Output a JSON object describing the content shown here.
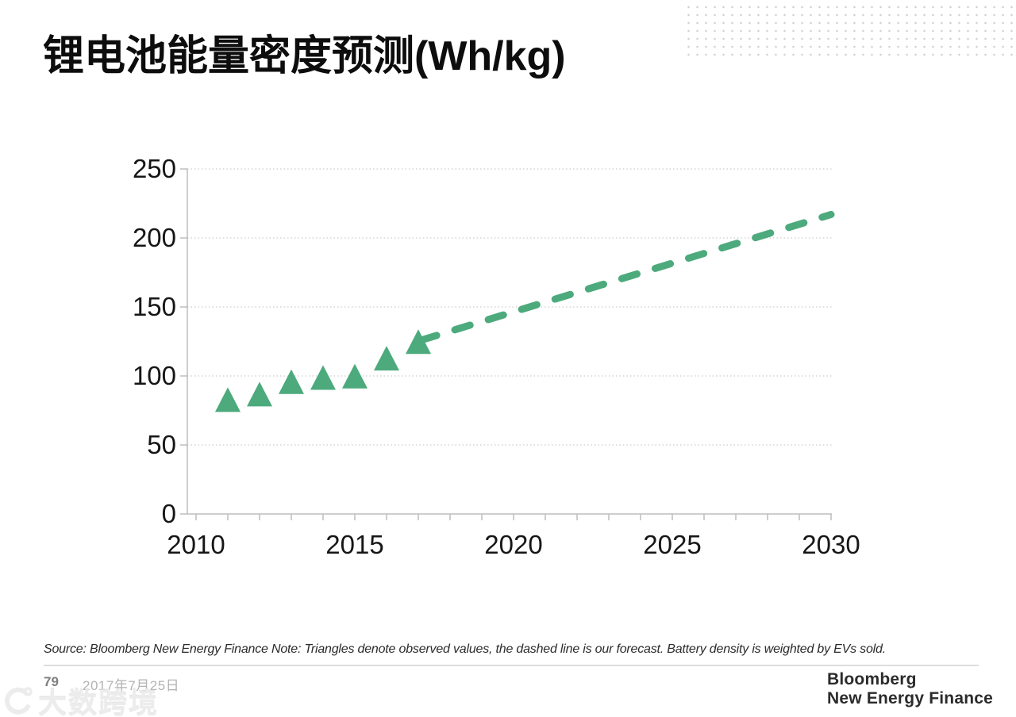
{
  "title": "锂电池能量密度预测(Wh/kg)",
  "source_note": "Source: Bloomberg New Energy Finance Note: Triangles denote observed values, the dashed line is our forecast. Battery density is weighted by EVs sold.",
  "footer": {
    "page_number": "79",
    "date": "2017年7月25日",
    "logo_line1": "Bloomberg",
    "logo_line2": "New Energy Finance"
  },
  "watermark": {
    "text": "大数跨境"
  },
  "colors": {
    "accent_green": "#4caa7c",
    "grid_dotted": "#cccccc",
    "axis_line": "#bdbdbd",
    "label_text": "#161616"
  },
  "chart_data": {
    "type": "scatter",
    "title": "锂电池能量密度预测(Wh/kg)",
    "xlabel": "",
    "ylabel": "",
    "xlim": [
      2010,
      2030
    ],
    "ylim": [
      0,
      250
    ],
    "yticks": [
      0,
      50,
      100,
      150,
      200,
      250
    ],
    "xticks_labeled": [
      2010,
      2015,
      2020,
      2025,
      2030
    ],
    "x_minor_tick_step": 1,
    "grid": "horizontal dotted gridlines",
    "legend": "none",
    "series": [
      {
        "name": "Observed values",
        "type": "scatter",
        "marker": "triangle",
        "color": "#4caa7c",
        "x": [
          2011,
          2012,
          2013,
          2014,
          2015,
          2016,
          2017
        ],
        "values": [
          82,
          86,
          95,
          98,
          99,
          112,
          124
        ]
      },
      {
        "name": "Forecast",
        "type": "line",
        "style": "dashed",
        "color": "#4caa7c",
        "x": [
          2017.1,
          2030
        ],
        "values": [
          126,
          217
        ]
      }
    ]
  }
}
